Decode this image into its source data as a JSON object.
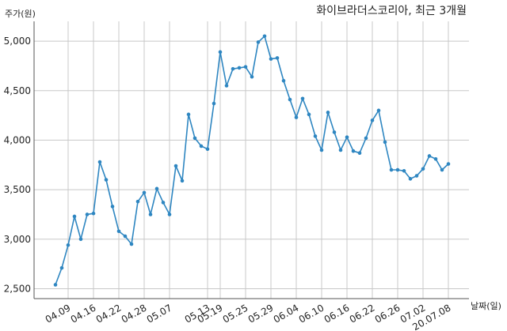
{
  "chart_data": {
    "type": "line",
    "title": "화이브라더스코리아, 최근 3개월",
    "ylabel": "주가(원)",
    "xlabel": "날짜(일)",
    "ylim": [
      2400,
      5200
    ],
    "yticks": [
      2500,
      3000,
      3500,
      4000,
      4500,
      5000
    ],
    "ytick_labels": [
      "2,500",
      "3,000",
      "3,500",
      "4,000",
      "4,500",
      "5,000"
    ],
    "grid": true,
    "line_color": "#2e86c1",
    "series": [
      {
        "values": [
          2540,
          2710,
          2940,
          3230,
          3000,
          3250,
          3260,
          3780,
          3600,
          3330,
          3080,
          3030,
          2950,
          3380,
          3470,
          3250,
          3510,
          3370,
          3250,
          3740,
          3590,
          4260,
          4020,
          3940,
          3910,
          4370,
          4890,
          4550,
          4720,
          4730,
          4740,
          4640,
          4990,
          5050,
          4820,
          4830,
          4600,
          4410,
          4230,
          4420,
          4260,
          4040,
          3900,
          4280,
          4080,
          3900,
          4030,
          3890,
          3870,
          4020,
          4200,
          4300,
          3980,
          3700,
          3700,
          3690,
          3610,
          3640,
          3710,
          3840,
          3810,
          3700,
          3760
        ]
      }
    ],
    "xtick_labels": [
      "04.09",
      "04.16",
      "04.22",
      "04.28",
      "05.07",
      "05.13",
      "05.19",
      "05.25",
      "05.29",
      "06.04",
      "06.10",
      "06.16",
      "06.22",
      "06.26",
      "07.02",
      "20.07.08"
    ],
    "xtick_indices": [
      2,
      6,
      10,
      14,
      18,
      24,
      26,
      30,
      34,
      38,
      42,
      46,
      50,
      54,
      58,
      62
    ]
  }
}
